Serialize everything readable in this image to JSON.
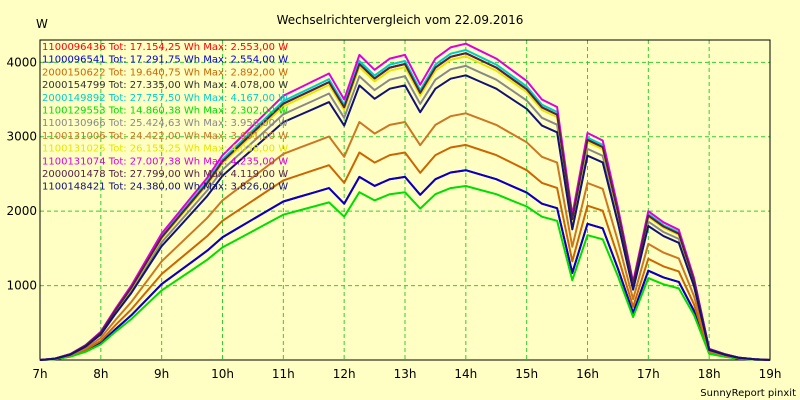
{
  "chart_data": {
    "type": "line",
    "title": "Wechselrichtervergleich vom 22.09.2016",
    "ylabel": "W",
    "xlabel": "",
    "ylim": [
      0,
      4300
    ],
    "xlim": [
      7,
      19
    ],
    "y_ticks": [
      1000,
      2000,
      3000,
      4000
    ],
    "x_ticks": [
      7,
      8,
      9,
      10,
      11,
      12,
      13,
      14,
      15,
      16,
      17,
      18,
      19
    ],
    "x_tick_labels": [
      "7h",
      "8h",
      "9h",
      "10h",
      "11h",
      "12h",
      "13h",
      "14h",
      "15h",
      "16h",
      "17h",
      "18h",
      "19h"
    ],
    "grid": true,
    "legend_position": "top-left",
    "footer": "SunnyReport pinxit",
    "series": [
      {
        "name": "1100096436",
        "color": "#ff0000",
        "total": "Tot: 17.154,25 Wh",
        "max": "Max: 2.553,00 W",
        "factor": 0.6
      },
      {
        "name": "1100096541",
        "color": "#0000cc",
        "total": "Tot: 17.291,75 Wh",
        "max": "Max: 2.554,00 W",
        "factor": 0.6
      },
      {
        "name": "2000150622",
        "color": "#cc6600",
        "total": "Tot: 19.640,75 Wh",
        "max": "Max: 2.892,00 W",
        "factor": 0.68
      },
      {
        "name": "2000154799",
        "color": "#333333",
        "total": "Tot: 27.335,00 Wh",
        "max": "Max: 4.078,00 W",
        "factor": 0.97
      },
      {
        "name": "2000149892",
        "color": "#00cccc",
        "total": "Tot: 27.757,50 Wh",
        "max": "Max: 4.167,00 W",
        "factor": 0.98
      },
      {
        "name": "1100129553",
        "color": "#00dd00",
        "total": "Tot: 14.860,38 Wh",
        "max": "Max: 2.302,00 W",
        "factor": 0.55
      },
      {
        "name": "1100130966",
        "color": "#888888",
        "total": "Tot: 25.424,63 Wh",
        "max": "Max: 3.956,00 W",
        "factor": 0.93
      },
      {
        "name": "1100131006",
        "color": "#cc7722",
        "total": "Tot: 24.422,00 Wh",
        "max": "Max: 3.691,00 W",
        "factor": 0.78
      },
      {
        "name": "1100131025",
        "color": "#e6e600",
        "total": "Tot: 26.155,25 Wh",
        "max": "Max: 4.038,00 W",
        "factor": 0.96
      },
      {
        "name": "1100131074",
        "color": "#dd00dd",
        "total": "Tot: 27.007,38 Wh",
        "max": "Max: 4.235,00 W",
        "factor": 1.0
      },
      {
        "name": "2000001478",
        "color": "#552244",
        "total": "Tot: 27.799,00 Wh",
        "max": "Max: 4.119,00 W",
        "factor": 0.97
      },
      {
        "name": "1100148421",
        "color": "#111177",
        "total": "Tot: 24.380,00 Wh",
        "max": "Max: 3.826,00 W",
        "factor": 0.9
      }
    ],
    "x": [
      7,
      7.25,
      7.5,
      7.75,
      8,
      8.25,
      8.5,
      8.75,
      9,
      9.25,
      9.5,
      9.75,
      10,
      10.25,
      10.5,
      10.75,
      11,
      11.25,
      11.5,
      11.75,
      12,
      12.25,
      12.5,
      12.75,
      13,
      13.25,
      13.5,
      13.75,
      14,
      14.25,
      14.5,
      14.75,
      15,
      15.25,
      15.5,
      15.75,
      16,
      16.25,
      16.5,
      16.75,
      17,
      17.25,
      17.5,
      17.75,
      18,
      18.25,
      18.5,
      18.75,
      19
    ],
    "base_profile": [
      0,
      20,
      80,
      200,
      380,
      700,
      1000,
      1350,
      1700,
      1950,
      2200,
      2450,
      2750,
      2950,
      3150,
      3350,
      3550,
      3650,
      3750,
      3850,
      3500,
      4100,
      3900,
      4050,
      4100,
      3700,
      4050,
      4200,
      4250,
      4150,
      4050,
      3900,
      3750,
      3500,
      3400,
      1950,
      3050,
      2950,
      2050,
      1050,
      2000,
      1850,
      1750,
      1100,
      150,
      80,
      30,
      10,
      0
    ]
  }
}
